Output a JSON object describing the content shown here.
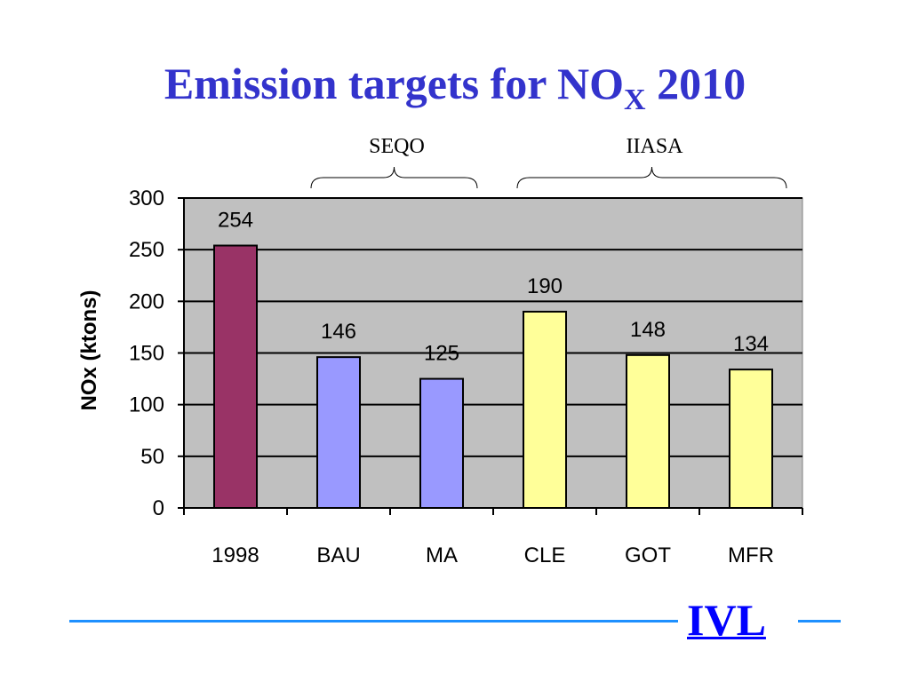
{
  "title": {
    "main": "Emission targets for NO",
    "subscript": "X",
    "suffix": " 2010"
  },
  "colors": {
    "title": "#3333cc",
    "plot_bg": "#c0c0c0",
    "bar_1998": "#993366",
    "bar_seqo": "#9999ff",
    "bar_iiasa": "#ffff99",
    "logo": "#0000ff",
    "rule": "#1e90ff"
  },
  "logo": {
    "text": "IVL"
  },
  "chart_data": {
    "type": "bar",
    "title": "",
    "xlabel": "",
    "ylabel": "NOx (ktons)",
    "ylim": [
      0,
      300
    ],
    "yticks": [
      0,
      50,
      100,
      150,
      200,
      250,
      300
    ],
    "grid": true,
    "categories": [
      "1998",
      "BAU",
      "MA",
      "CLE",
      "GOT",
      "MFR"
    ],
    "values": [
      254,
      146,
      125,
      190,
      148,
      134
    ],
    "data_labels": [
      "254",
      "146",
      "125",
      "190",
      "148",
      "134"
    ],
    "bar_colors": [
      "#993366",
      "#9999ff",
      "#9999ff",
      "#ffff99",
      "#ffff99",
      "#ffff99"
    ],
    "groups": [
      {
        "label": "SEQO",
        "from": 1,
        "to": 2
      },
      {
        "label": "IIASA",
        "from": 3,
        "to": 5
      }
    ]
  }
}
